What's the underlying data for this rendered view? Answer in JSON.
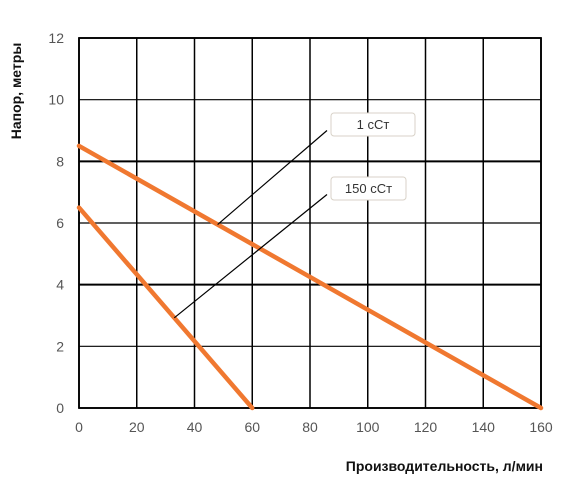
{
  "chart_data": {
    "type": "line",
    "xlabel": "Производительность, л/мин",
    "ylabel": "Напор, метры",
    "xlim": [
      0,
      160
    ],
    "ylim": [
      0,
      12
    ],
    "x_ticks": [
      0,
      20,
      40,
      60,
      80,
      100,
      120,
      140,
      160
    ],
    "y_ticks": [
      0,
      2,
      4,
      6,
      8,
      10,
      12
    ],
    "grid": true,
    "series_color": "#F07830",
    "series": [
      {
        "name": "1 сСт",
        "x": [
          0,
          160
        ],
        "y": [
          8.5,
          0
        ]
      },
      {
        "name": "150 сСт",
        "x": [
          0,
          60
        ],
        "y": [
          6.5,
          0
        ]
      }
    ]
  }
}
